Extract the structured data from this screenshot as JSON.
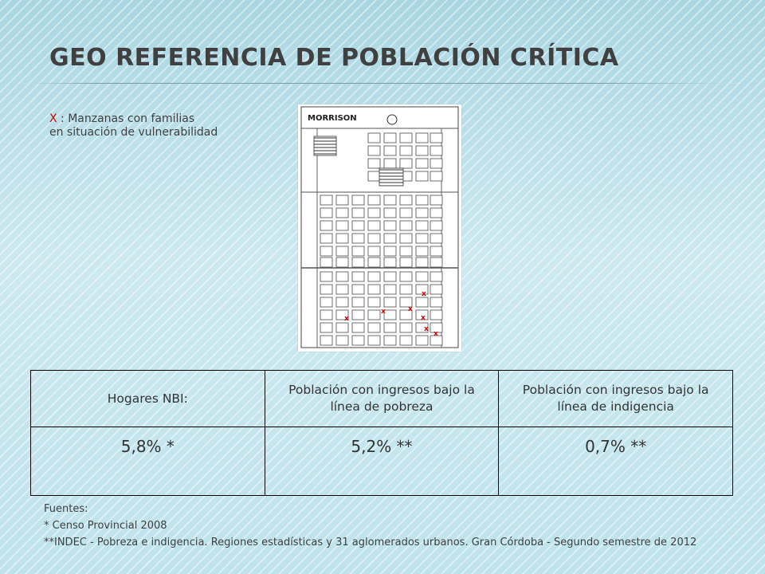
{
  "title": "Geo referencia de población crítica",
  "legend": {
    "mark": "X",
    "line1": ": Manzanas con familias",
    "line2": "en situación de vulnerabilidad"
  },
  "map": {
    "label": "MORRISON",
    "marker_color": "#d20000"
  },
  "table": {
    "headers": [
      "Hogares NBI:",
      "Población con ingresos bajo la línea de pobreza",
      "Población con ingresos bajo la línea de indigencia"
    ],
    "values": [
      "5,8% *",
      "5,2% **",
      "0,7% **"
    ]
  },
  "sources": {
    "heading": "Fuentes:",
    "items": [
      "*   Censo Provincial 2008",
      "**INDEC - Pobreza e indigencia. Regiones estadísticas y 31 aglomerados urbanos. Gran Córdoba - Segundo semestre de 2012"
    ]
  }
}
